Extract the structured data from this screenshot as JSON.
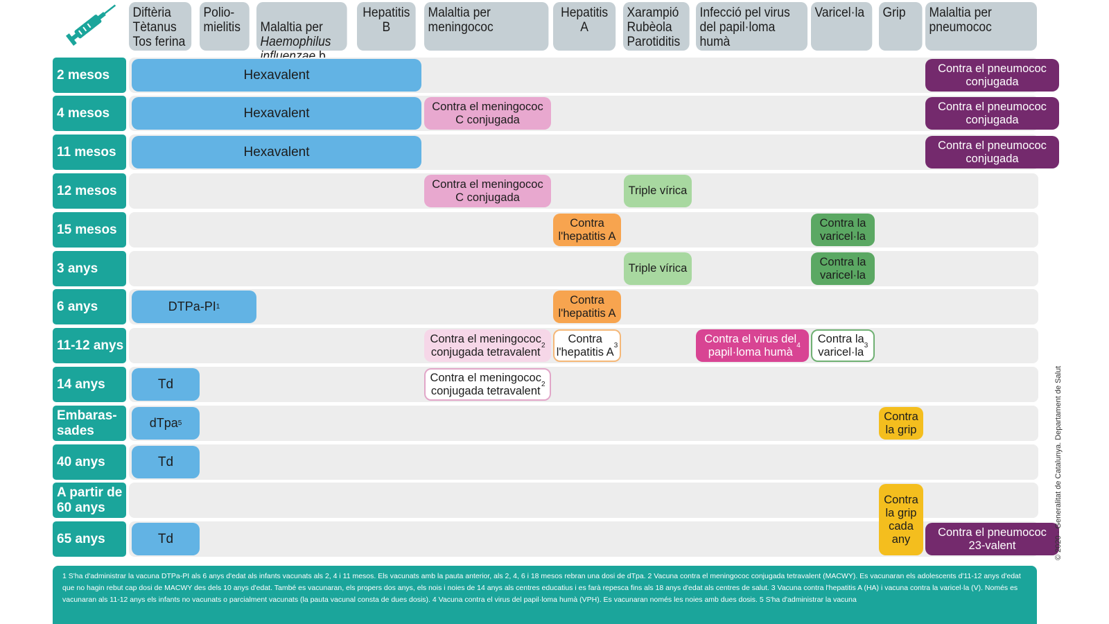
{
  "headers": [
    {
      "text": "Diftèria\nTètanus\nTos ferina"
    },
    {
      "text": "Polio-\nmielitis"
    },
    {
      "text": "Malaltia per\nHaemophilus\ninfluenzae b"
    },
    {
      "text": "Hepatitis\nB"
    },
    {
      "text": "Malaltia per\nmeningococ"
    },
    {
      "text": "Hepatitis\nA"
    },
    {
      "text": "Xarampió\nRubèola\nParotiditis"
    },
    {
      "text": "Infecció pel virus\ndel papil·loma\nhumà"
    },
    {
      "text": "Varicel·la"
    },
    {
      "text": "Grip"
    },
    {
      "text": "Malaltia per\npneumococ"
    }
  ],
  "rows": [
    {
      "label": "2 mesos"
    },
    {
      "label": "4 mesos"
    },
    {
      "label": "11 mesos"
    },
    {
      "label": "12 mesos"
    },
    {
      "label": "15 mesos"
    },
    {
      "label": "3 anys"
    },
    {
      "label": "6 anys"
    },
    {
      "label": "11-12 anys"
    },
    {
      "label": "14 anys"
    },
    {
      "label": "Embaras-\nsades"
    },
    {
      "label": "40 anys"
    },
    {
      "label": "A partir de\n60 anys"
    },
    {
      "label": "65 anys"
    }
  ],
  "cells": {
    "hexa_2m": "Hexavalent",
    "hexa_4m": "Hexavalent",
    "hexa_11m": "Hexavalent",
    "pneumo_2m": "Contra el pneumococ\nconjugada",
    "pneumo_4m": "Contra el pneumococ\nconjugada",
    "pneumo_11m": "Contra el pneumococ\nconjugada",
    "menc_4m": "Contra el meningococ\nC conjugada",
    "menc_12m": "Contra el meningococ\nC conjugada",
    "triple_12m": "Triple vírica",
    "hepa_15m": "Contra\nl'hepatitis A",
    "vari_15m": "Contra la\nvaricel·la",
    "triple_3a": "Triple vírica",
    "vari_3a": "Contra la\nvaricel·la",
    "dtpa_6a": "DTPa-PI",
    "dtpa_6a_sup": "1",
    "hepa_6a": "Contra\nl'hepatitis A",
    "menacwy_11a": "Contra el meningococ\nconjugada tetravalent",
    "menacwy_11a_sup": "2",
    "hepa_11a": "Contra\nl'hepatitis A",
    "hepa_11a_sup": "3",
    "vph_11a": "Contra el virus del\npapil·loma humà",
    "vph_11a_sup": "4",
    "vari_11a": "Contra la\nvaricel·la",
    "vari_11a_sup": "3",
    "td_14a": "Td",
    "menacwy_14a": "Contra el meningococ\nconjugada tetravalent",
    "menacwy_14a_sup": "2",
    "dtpa_emb": "dTpa",
    "dtpa_emb_sup": "5",
    "grip_emb": "Contra\nla grip",
    "td_40a": "Td",
    "grip_60a": "Contra\nla grip\ncada\nany",
    "td_65a": "Td",
    "pneumo_65a": "Contra el pneumococ\n23-valent"
  },
  "footer": {
    "text": "1 S'ha d'administrar la vacuna DTPa-PI als 6 anys d'edat als infants vacunats als 2, 4 i 11 mesos. Els vacunats amb la pauta anterior, als 2, 4, 6 i 18 mesos rebran una dosi de dTpa. 2 Vacuna contra el meningococ conjugada tetravalent (MACWY). Es vacunaran els adolescents d'11-12 anys d'edat que no hagin rebut cap dosi de MACWY des dels 10 anys d'edat. També es vacunaran, els propers dos anys, els nois i noies de 14 anys als centres educatius i es farà repesca fins als 18 anys d'edat als centres de salut. 3 Vacuna contra l'hepatitis A (HA) i vacuna contra la varicel·la (V). Només es vacunaran als 11-12 anys els infants no vacunats o parcialment vacunats (la pauta vacunal consta de dues dosis). 4 Vacuna contra el virus del papil·loma humà (VPH). Es vacunaran només les noies amb dues dosis. 5 S'ha d'administrar la vacuna"
  },
  "copyright": "© 2020 · Generalitat de Catalunya. Departament de Salut",
  "icons": {
    "syringe": "syringe-icon"
  },
  "colors": {
    "teal": "#1ba59b",
    "header_gray": "#c5cfd4",
    "hexavalent_blue": "#62b3e4",
    "meningococ_pink": "#e8a8cf",
    "pneumococ_purple": "#742a6d",
    "triple_green": "#a8d8a0",
    "hepatitis_orange": "#f7a44f",
    "varicella_green": "#5ba863",
    "vph_magenta": "#d84493",
    "grip_yellow": "#f4be1e"
  }
}
